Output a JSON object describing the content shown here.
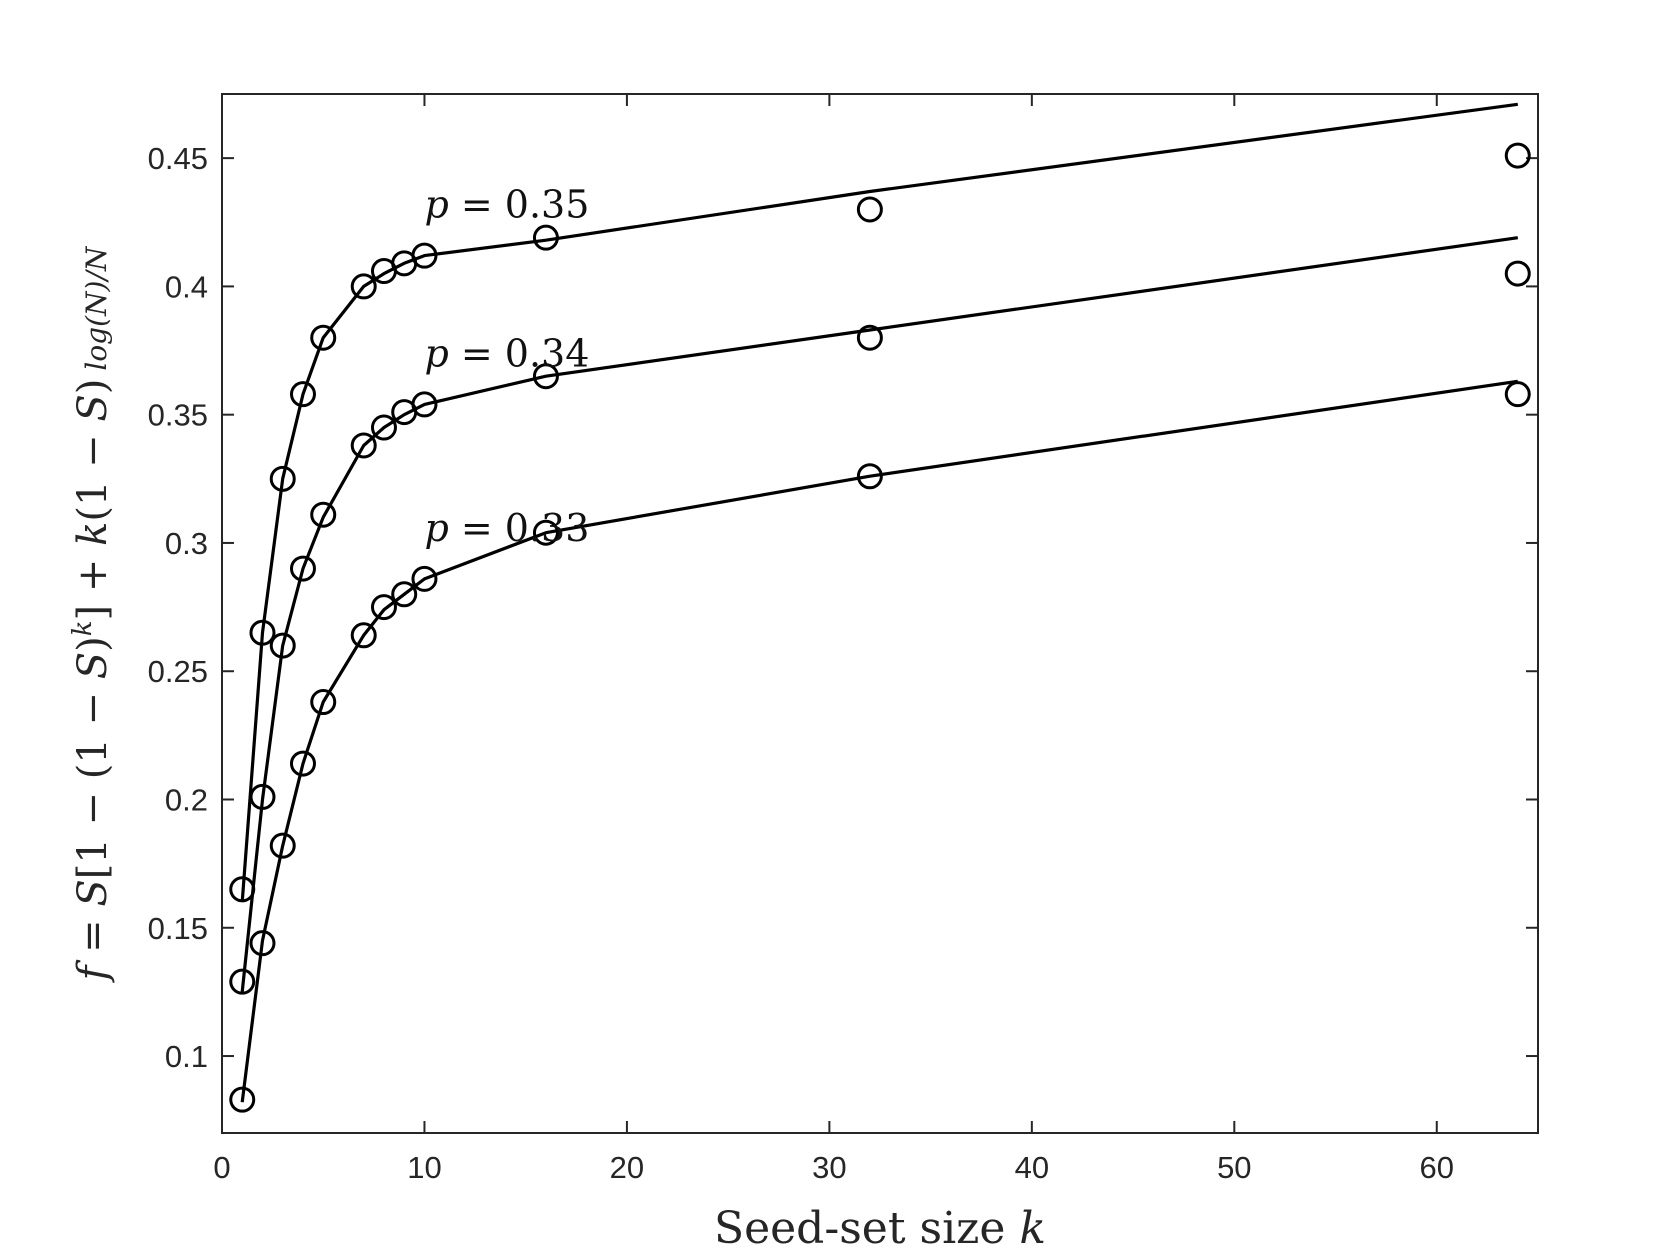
{
  "chart_data": {
    "type": "line",
    "title": "",
    "xlabel": "Seed-set size k",
    "ylabel": "f = S[1 − (1 − S)^k] + k(1 − S) log(N)/N",
    "xlim": [
      0,
      65
    ],
    "ylim": [
      0.07,
      0.475
    ],
    "xticks": [
      0,
      10,
      20,
      30,
      40,
      50,
      60
    ],
    "xtick_labels": [
      "0",
      "10",
      "20",
      "30",
      "40",
      "50",
      "60"
    ],
    "yticks": [
      0.1,
      0.15,
      0.2,
      0.25,
      0.3,
      0.35,
      0.4,
      0.45
    ],
    "ytick_labels": [
      "0.1",
      "0.15",
      "0.2",
      "0.25",
      "0.3",
      "0.35",
      "0.4",
      "0.45"
    ],
    "grid": false,
    "legend": "none",
    "colors": {
      "line": "#000000",
      "axes": "#262626"
    },
    "series": [
      {
        "annotation": "p = 0.35",
        "line_x": [
          1,
          2,
          3,
          4,
          5,
          7,
          8,
          9,
          10,
          16,
          32,
          64
        ],
        "line_y": [
          0.16,
          0.265,
          0.325,
          0.358,
          0.38,
          0.4,
          0.405,
          0.409,
          0.412,
          0.418,
          0.437,
          0.471
        ],
        "marker_x": [
          1,
          2,
          3,
          4,
          5,
          7,
          8,
          9,
          10,
          16,
          32,
          64
        ],
        "marker_y": [
          0.165,
          0.265,
          0.325,
          0.358,
          0.38,
          0.4,
          0.406,
          0.409,
          0.412,
          0.419,
          0.43,
          0.451
        ]
      },
      {
        "annotation": "p = 0.34",
        "line_x": [
          1,
          2,
          3,
          4,
          5,
          7,
          8,
          9,
          10,
          16,
          32,
          64
        ],
        "line_y": [
          0.125,
          0.2,
          0.26,
          0.29,
          0.31,
          0.338,
          0.345,
          0.35,
          0.354,
          0.365,
          0.383,
          0.419
        ],
        "marker_x": [
          1,
          2,
          3,
          4,
          5,
          7,
          8,
          9,
          10,
          16,
          32,
          64
        ],
        "marker_y": [
          0.129,
          0.201,
          0.26,
          0.29,
          0.311,
          0.338,
          0.345,
          0.351,
          0.354,
          0.365,
          0.38,
          0.405
        ]
      },
      {
        "annotation": "p = 0.33",
        "line_x": [
          1,
          2,
          3,
          4,
          5,
          7,
          8,
          9,
          10,
          16,
          32,
          64
        ],
        "line_y": [
          0.082,
          0.145,
          0.182,
          0.214,
          0.238,
          0.264,
          0.274,
          0.28,
          0.286,
          0.304,
          0.326,
          0.363
        ],
        "marker_x": [
          1,
          2,
          3,
          4,
          5,
          7,
          8,
          9,
          10,
          16,
          32,
          64
        ],
        "marker_y": [
          0.083,
          0.144,
          0.182,
          0.214,
          0.238,
          0.264,
          0.275,
          0.28,
          0.286,
          0.304,
          0.326,
          0.358
        ]
      }
    ]
  }
}
